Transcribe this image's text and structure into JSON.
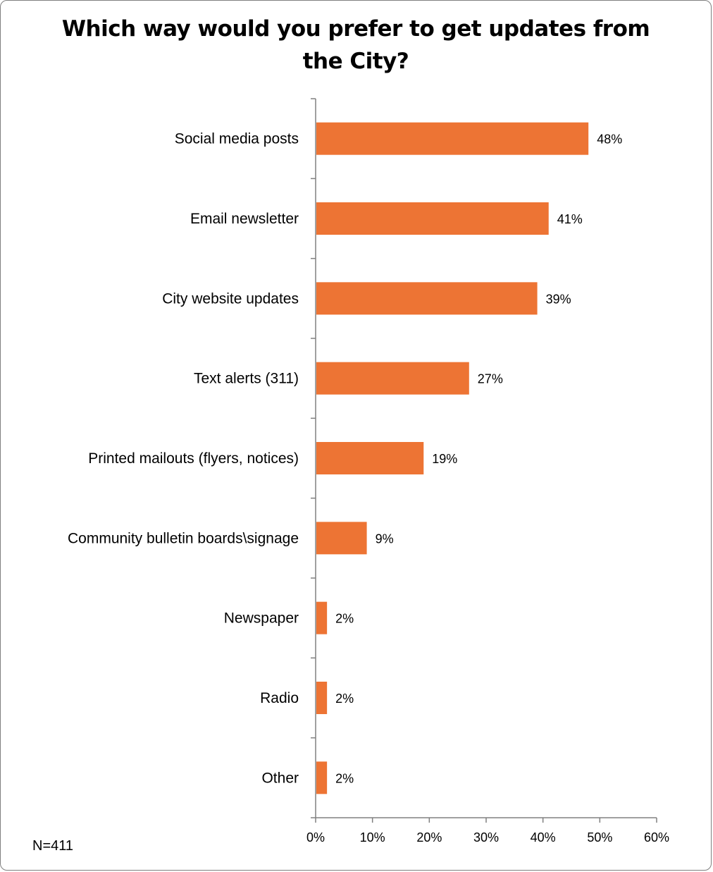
{
  "chart_data": {
    "type": "bar",
    "orientation": "horizontal",
    "title": "Which way would you prefer to get updates from the City?",
    "note": "N=411",
    "categories": [
      "Social media posts",
      "Email newsletter",
      "City website updates",
      "Text alerts (311)",
      "Printed mailouts (flyers, notices)",
      "Community bulletin boards\\signage",
      "Newspaper",
      "Radio",
      "Other"
    ],
    "values": [
      48,
      41,
      39,
      27,
      19,
      9,
      2,
      2,
      2
    ],
    "value_labels": [
      "48%",
      "41%",
      "39%",
      "27%",
      "19%",
      "9%",
      "2%",
      "2%",
      "2%"
    ],
    "xlim": [
      0,
      60
    ],
    "xticks": [
      0,
      10,
      20,
      30,
      40,
      50,
      60
    ],
    "xtick_labels": [
      "0%",
      "10%",
      "20%",
      "30%",
      "40%",
      "50%",
      "60%"
    ],
    "bar_color": "#ED7434",
    "grid": false,
    "legend": "none"
  }
}
